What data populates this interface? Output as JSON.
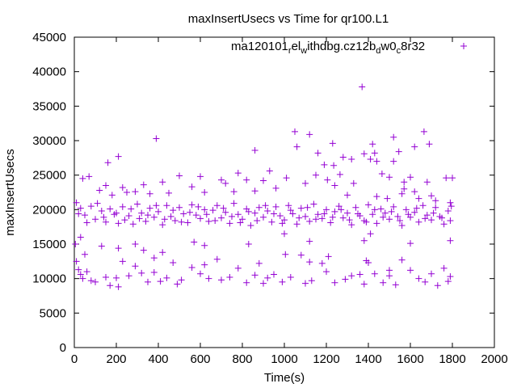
{
  "chart_data": {
    "type": "scatter",
    "title": "maxInsertUsecs vs Time for qr100.L1",
    "xlabel": "Time(s)",
    "ylabel": "maxInsertUsecs",
    "xlim": [
      0,
      2000
    ],
    "ylim": [
      0,
      45000
    ],
    "xticks": [
      "0",
      "200",
      "400",
      "600",
      "800",
      "1000",
      "1200",
      "1400",
      "1600",
      "1800",
      "2000"
    ],
    "yticks": [
      "0",
      "5000",
      "10000",
      "15000",
      "20000",
      "25000",
      "30000",
      "35000",
      "40000",
      "45000"
    ],
    "grid": false,
    "legend_position": "top-right",
    "legend": {
      "base": "ma120101",
      "parts": [
        {
          "t": "r",
          "sub": true
        },
        {
          "t": "el",
          "sub": false
        },
        {
          "t": "w",
          "sub": true
        },
        {
          "t": "ithdbg.cz12b",
          "sub": false
        },
        {
          "t": "d",
          "sub": true
        },
        {
          "t": "w0",
          "sub": false
        },
        {
          "t": "c",
          "sub": true
        },
        {
          "t": "8r32",
          "sub": false
        }
      ]
    },
    "series": [
      {
        "name": "ma120101_rel_withdbg.cz12b_dw0_c8r32",
        "color": "#9400d3",
        "points": [
          [
            1370,
            37800
          ],
          [
            1050,
            31300
          ],
          [
            1665,
            31300
          ],
          [
            390,
            30300
          ],
          [
            1520,
            30500
          ],
          [
            1120,
            30900
          ],
          [
            1690,
            29500
          ],
          [
            1420,
            29500
          ],
          [
            1620,
            29100
          ],
          [
            1230,
            29600
          ],
          [
            1060,
            29100
          ],
          [
            860,
            28600
          ],
          [
            1545,
            28400
          ],
          [
            1430,
            28200
          ],
          [
            1160,
            28200
          ],
          [
            1280,
            27600
          ],
          [
            160,
            26800
          ],
          [
            210,
            27700
          ],
          [
            1380,
            28100
          ],
          [
            1440,
            27000
          ],
          [
            1320,
            27300
          ],
          [
            1520,
            27000
          ],
          [
            1410,
            27300
          ],
          [
            1235,
            26400
          ],
          [
            1465,
            25200
          ],
          [
            1265,
            25100
          ],
          [
            1150,
            25000
          ],
          [
            600,
            24800
          ],
          [
            780,
            25300
          ],
          [
            930,
            25600
          ],
          [
            1190,
            26500
          ],
          [
            720,
            23800
          ],
          [
            860,
            22700
          ],
          [
            1240,
            23500
          ],
          [
            1205,
            24300
          ],
          [
            1330,
            23800
          ],
          [
            1570,
            24000
          ],
          [
            1500,
            24700
          ],
          [
            1600,
            24700
          ],
          [
            1680,
            24000
          ],
          [
            1570,
            23000
          ],
          [
            1620,
            22600
          ],
          [
            1700,
            22000
          ],
          [
            1770,
            24600
          ],
          [
            1800,
            24600
          ],
          [
            40,
            24500
          ],
          [
            70,
            24800
          ],
          [
            120,
            22800
          ],
          [
            150,
            23500
          ],
          [
            180,
            22100
          ],
          [
            230,
            23200
          ],
          [
            250,
            22500
          ],
          [
            290,
            22600
          ],
          [
            330,
            23600
          ],
          [
            360,
            22300
          ],
          [
            420,
            24000
          ],
          [
            450,
            22400
          ],
          [
            500,
            24900
          ],
          [
            560,
            23300
          ],
          [
            620,
            22500
          ],
          [
            700,
            24300
          ],
          [
            760,
            22600
          ],
          [
            820,
            24300
          ],
          [
            900,
            24200
          ],
          [
            960,
            23100
          ],
          [
            1010,
            24600
          ],
          [
            1100,
            23800
          ],
          [
            1300,
            22100
          ],
          [
            1440,
            21900
          ],
          [
            1490,
            21600
          ],
          [
            1560,
            22300
          ],
          [
            1640,
            21600
          ],
          [
            1720,
            21300
          ],
          [
            1790,
            21000
          ],
          [
            10,
            21000
          ],
          [
            30,
            20200
          ],
          [
            50,
            19200
          ],
          [
            80,
            20500
          ],
          [
            100,
            18600
          ],
          [
            130,
            19800
          ],
          [
            150,
            18200
          ],
          [
            170,
            20100
          ],
          [
            190,
            19300
          ],
          [
            210,
            18000
          ],
          [
            230,
            20400
          ],
          [
            260,
            19100
          ],
          [
            280,
            17900
          ],
          [
            300,
            20800
          ],
          [
            320,
            19500
          ],
          [
            340,
            18300
          ],
          [
            360,
            20200
          ],
          [
            380,
            18900
          ],
          [
            400,
            19700
          ],
          [
            420,
            17800
          ],
          [
            440,
            20600
          ],
          [
            460,
            19000
          ],
          [
            480,
            18400
          ],
          [
            500,
            20300
          ],
          [
            520,
            19400
          ],
          [
            540,
            18100
          ],
          [
            560,
            20700
          ],
          [
            580,
            19200
          ],
          [
            600,
            18700
          ],
          [
            620,
            20000
          ],
          [
            640,
            18300
          ],
          [
            660,
            19900
          ],
          [
            680,
            20600
          ],
          [
            700,
            18800
          ],
          [
            720,
            19600
          ],
          [
            740,
            18000
          ],
          [
            760,
            20900
          ],
          [
            780,
            19300
          ],
          [
            800,
            18600
          ],
          [
            820,
            20100
          ],
          [
            840,
            17700
          ],
          [
            860,
            19500
          ],
          [
            880,
            20300
          ],
          [
            900,
            18900
          ],
          [
            920,
            19800
          ],
          [
            940,
            18200
          ],
          [
            960,
            20400
          ],
          [
            980,
            19100
          ],
          [
            1000,
            18500
          ],
          [
            1020,
            20600
          ],
          [
            1040,
            19400
          ],
          [
            1060,
            17900
          ],
          [
            1080,
            20200
          ],
          [
            1100,
            19000
          ],
          [
            1120,
            18300
          ],
          [
            1140,
            20800
          ],
          [
            1160,
            19300
          ],
          [
            1180,
            18700
          ],
          [
            1200,
            20000
          ],
          [
            1220,
            18100
          ],
          [
            1240,
            19700
          ],
          [
            1260,
            20500
          ],
          [
            1280,
            18800
          ],
          [
            1300,
            19500
          ],
          [
            1320,
            17800
          ],
          [
            1340,
            20300
          ],
          [
            1360,
            19100
          ],
          [
            1380,
            18400
          ],
          [
            1400,
            20700
          ],
          [
            1420,
            19300
          ],
          [
            1440,
            18000
          ],
          [
            1460,
            20100
          ],
          [
            1480,
            19500
          ],
          [
            1500,
            18600
          ],
          [
            1520,
            20400
          ],
          [
            1540,
            19000
          ],
          [
            1560,
            17700
          ],
          [
            1580,
            20000
          ],
          [
            1600,
            18900
          ],
          [
            1620,
            19600
          ],
          [
            1640,
            18200
          ],
          [
            1660,
            20600
          ],
          [
            1680,
            19200
          ],
          [
            1700,
            18500
          ],
          [
            1720,
            20300
          ],
          [
            1740,
            19000
          ],
          [
            1760,
            17900
          ],
          [
            1780,
            19800
          ],
          [
            1795,
            20500
          ],
          [
            20,
            19400
          ],
          [
            60,
            18100
          ],
          [
            110,
            20900
          ],
          [
            140,
            18900
          ],
          [
            200,
            19500
          ],
          [
            240,
            18500
          ],
          [
            270,
            20100
          ],
          [
            310,
            18700
          ],
          [
            350,
            19200
          ],
          [
            390,
            20600
          ],
          [
            430,
            18600
          ],
          [
            470,
            19900
          ],
          [
            510,
            18200
          ],
          [
            550,
            19600
          ],
          [
            590,
            20400
          ],
          [
            630,
            19300
          ],
          [
            670,
            18400
          ],
          [
            710,
            20200
          ],
          [
            750,
            19000
          ],
          [
            790,
            18100
          ],
          [
            830,
            19700
          ],
          [
            870,
            18400
          ],
          [
            910,
            20600
          ],
          [
            950,
            19400
          ],
          [
            990,
            18000
          ],
          [
            1030,
            19900
          ],
          [
            1070,
            18800
          ],
          [
            1110,
            20300
          ],
          [
            1150,
            18600
          ],
          [
            1190,
            19400
          ],
          [
            1230,
            18900
          ],
          [
            1270,
            20000
          ],
          [
            1310,
            18500
          ],
          [
            1350,
            19400
          ],
          [
            1390,
            18200
          ],
          [
            1430,
            20000
          ],
          [
            1470,
            18900
          ],
          [
            1510,
            19700
          ],
          [
            1550,
            18400
          ],
          [
            1590,
            19300
          ],
          [
            1630,
            20200
          ],
          [
            1670,
            18700
          ],
          [
            1710,
            19500
          ],
          [
            1750,
            18800
          ],
          [
            1790,
            18400
          ],
          [
            5,
            15000
          ],
          [
            30,
            16000
          ],
          [
            130,
            14700
          ],
          [
            210,
            14400
          ],
          [
            290,
            15000
          ],
          [
            330,
            14100
          ],
          [
            420,
            13800
          ],
          [
            570,
            15300
          ],
          [
            620,
            14800
          ],
          [
            830,
            15000
          ],
          [
            1000,
            16500
          ],
          [
            1120,
            15400
          ],
          [
            1380,
            15500
          ],
          [
            1410,
            16500
          ],
          [
            1600,
            15100
          ],
          [
            1790,
            15500
          ],
          [
            10,
            12500
          ],
          [
            20,
            11300
          ],
          [
            30,
            10600
          ],
          [
            40,
            10000
          ],
          [
            60,
            11000
          ],
          [
            80,
            9700
          ],
          [
            100,
            9500
          ],
          [
            150,
            10200
          ],
          [
            170,
            9000
          ],
          [
            200,
            10100
          ],
          [
            210,
            8800
          ],
          [
            230,
            12500
          ],
          [
            260,
            10400
          ],
          [
            290,
            11800
          ],
          [
            320,
            10800
          ],
          [
            350,
            9500
          ],
          [
            380,
            10900
          ],
          [
            410,
            9600
          ],
          [
            440,
            10100
          ],
          [
            470,
            12300
          ],
          [
            490,
            9200
          ],
          [
            510,
            9800
          ],
          [
            560,
            11600
          ],
          [
            600,
            10700
          ],
          [
            640,
            10000
          ],
          [
            680,
            12800
          ],
          [
            700,
            9800
          ],
          [
            740,
            10200
          ],
          [
            780,
            11500
          ],
          [
            820,
            9400
          ],
          [
            860,
            10500
          ],
          [
            880,
            12200
          ],
          [
            900,
            9300
          ],
          [
            920,
            10100
          ],
          [
            950,
            10600
          ],
          [
            990,
            9500
          ],
          [
            1030,
            10200
          ],
          [
            1080,
            13400
          ],
          [
            1100,
            9300
          ],
          [
            1130,
            9700
          ],
          [
            1180,
            12200
          ],
          [
            1200,
            11000
          ],
          [
            1240,
            9400
          ],
          [
            1290,
            9900
          ],
          [
            1320,
            10400
          ],
          [
            1360,
            10600
          ],
          [
            1380,
            9200
          ],
          [
            1400,
            12300
          ],
          [
            1430,
            10700
          ],
          [
            1470,
            9400
          ],
          [
            1500,
            10400
          ],
          [
            1530,
            9100
          ],
          [
            1560,
            12700
          ],
          [
            1600,
            11200
          ],
          [
            1640,
            10000
          ],
          [
            1670,
            9500
          ],
          [
            1700,
            10700
          ],
          [
            1730,
            9000
          ],
          [
            1760,
            11500
          ],
          [
            1780,
            9600
          ],
          [
            1790,
            10300
          ],
          [
            50,
            13500
          ],
          [
            380,
            13000
          ],
          [
            620,
            12000
          ],
          [
            1005,
            13500
          ],
          [
            1120,
            12400
          ],
          [
            1210,
            13200
          ],
          [
            1390,
            12600
          ],
          [
            1500,
            11200
          ]
        ]
      }
    ]
  }
}
